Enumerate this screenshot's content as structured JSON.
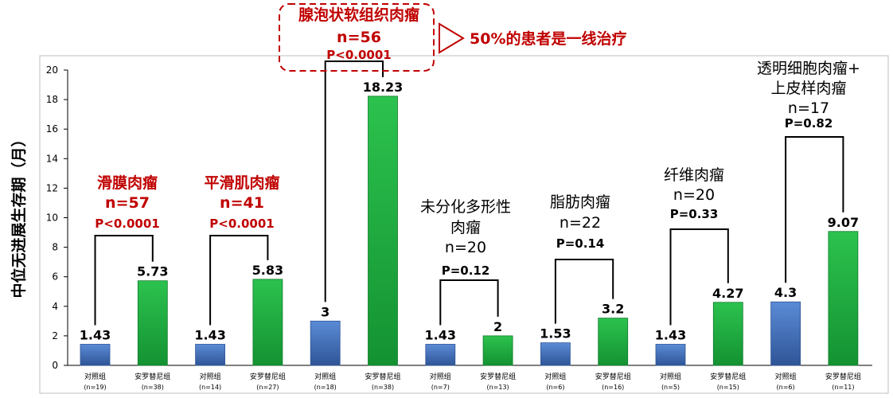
{
  "chart_data": {
    "type": "bar",
    "title": "",
    "xlabel": "",
    "ylabel": "中位无进展生存期（月）",
    "ylim": [
      0,
      20
    ],
    "yticks": [
      0,
      2,
      4,
      6,
      8,
      10,
      12,
      14,
      16,
      18,
      20
    ],
    "grid": false,
    "colors": {
      "control": "#4472C4",
      "treatment": "#1EAA3C",
      "highlight": "#C00000",
      "bracket": "#000000"
    },
    "bars": [
      {
        "label": "对照组",
        "n": "(n=19)",
        "value": 1.43,
        "value_label": "1.43",
        "group": "control"
      },
      {
        "label": "安罗替尼组",
        "n": "(n=38)",
        "value": 5.73,
        "value_label": "5.73",
        "group": "treatment"
      },
      {
        "label": "对照组",
        "n": "(n=14)",
        "value": 1.43,
        "value_label": "1.43",
        "group": "control"
      },
      {
        "label": "安罗替尼组",
        "n": "(n=27)",
        "value": 5.83,
        "value_label": "5.83",
        "group": "treatment"
      },
      {
        "label": "对照组",
        "n": "(n=18)",
        "value": 3,
        "value_label": "3",
        "group": "control"
      },
      {
        "label": "安罗替尼组",
        "n": "(n=38)",
        "value": 18.23,
        "value_label": "18.23",
        "group": "treatment"
      },
      {
        "label": "对照组",
        "n": "(n=7)",
        "value": 1.43,
        "value_label": "1.43",
        "group": "control"
      },
      {
        "label": "安罗替尼组",
        "n": "(n=13)",
        "value": 2,
        "value_label": "2",
        "group": "treatment"
      },
      {
        "label": "对照组",
        "n": "(n=6)",
        "value": 1.53,
        "value_label": "1.53",
        "group": "control"
      },
      {
        "label": "安罗替尼组",
        "n": "(n=16)",
        "value": 3.2,
        "value_label": "3.2",
        "group": "treatment"
      },
      {
        "label": "对照组",
        "n": "(n=5)",
        "value": 1.43,
        "value_label": "1.43",
        "group": "control"
      },
      {
        "label": "安罗替尼组",
        "n": "(n=15)",
        "value": 4.27,
        "value_label": "4.27",
        "group": "treatment"
      },
      {
        "label": "对照组",
        "n": "(n=6)",
        "value": 4.3,
        "value_label": "4.3",
        "group": "control"
      },
      {
        "label": "安罗替尼组",
        "n": "(n=11)",
        "value": 9.07,
        "value_label": "9.07",
        "group": "treatment"
      }
    ],
    "groups": [
      {
        "name_lines": [
          "滑膜肉瘤"
        ],
        "n_text": "n=57",
        "p_text": "P<0.0001",
        "highlight": true
      },
      {
        "name_lines": [
          "平滑肌肉瘤"
        ],
        "n_text": "n=41",
        "p_text": "P<0.0001",
        "highlight": true
      },
      {
        "name_lines": [
          "腺泡状软组织肉瘤"
        ],
        "n_text": "n=56",
        "p_text": "P<0.0001",
        "highlight": true
      },
      {
        "name_lines": [
          "未分化多形性",
          "肉瘤"
        ],
        "n_text": "n=20",
        "p_text": "P=0.12",
        "highlight": false
      },
      {
        "name_lines": [
          "脂肪肉瘤"
        ],
        "n_text": "n=22",
        "p_text": "P=0.14",
        "highlight": false
      },
      {
        "name_lines": [
          "纤维肉瘤"
        ],
        "n_text": "n=20",
        "p_text": "P=0.33",
        "highlight": false
      },
      {
        "name_lines": [
          "透明细胞肉瘤+",
          "上皮样肉瘤"
        ],
        "n_text": "n=17",
        "p_text": "P=0.82",
        "highlight": false
      }
    ],
    "callout": "50%的患者是一线治疗"
  }
}
